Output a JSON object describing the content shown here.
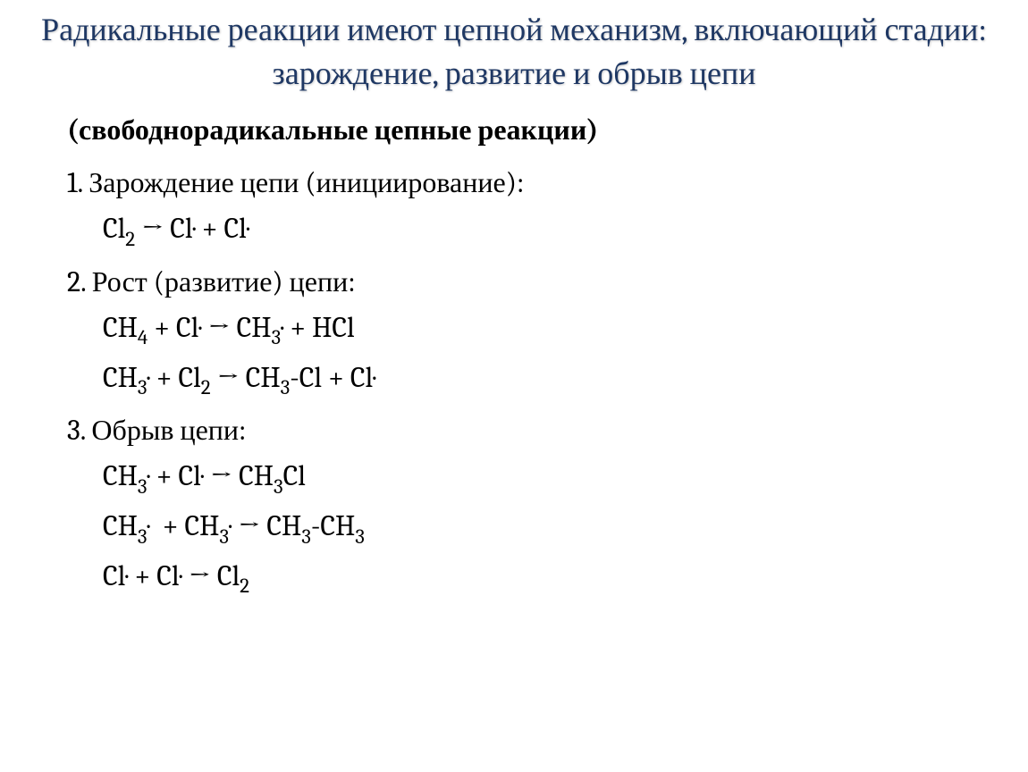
{
  "title": "Радикальные реакции имеют цепной механизм, включающий стадии: зарождение, развитие и обрыв цепи",
  "subtitle": "(свободнорадикальные цепные реакции)",
  "sections": [
    {
      "heading": "1. Зарождение цепи (инициирование):",
      "equations": [
        "Cl<sub>2</sub> → Cl<span class=\"radical\"></span> + Cl<span class=\"radical\"></span>"
      ]
    },
    {
      "heading": "2. Рост (развитие) цепи:",
      "equations": [
        "CH<sub>4</sub> + Cl<span class=\"radical\"></span> → CH<sub>3</sub><span class=\"radical\"></span> + HCl",
        "CH<sub>3</sub><span class=\"radical\"></span> + Cl<sub>2</sub> → CH<sub>3</sub>-Cl + Cl<span class=\"radical\"></span>"
      ]
    },
    {
      "heading": "3. Обрыв цепи:",
      "equations": [
        "CH<sub>3</sub><span class=\"radical\"></span> + Cl<span class=\"radical\"></span> → CH<sub>3</sub>Cl",
        "CH<sub>3</sub><span class=\"radical\"></span>&nbsp; + CH<sub>3</sub><span class=\"radical\"></span> → CH<sub>3</sub>-CH<sub>3</sub>",
        "Cl<span class=\"radical\"></span> + Cl<span class=\"radical\"></span> → Cl<sub>2</sub>"
      ]
    }
  ],
  "colors": {
    "title_color": "#1f3864",
    "text_color": "#000000",
    "background": "#ffffff"
  },
  "typography": {
    "title_fontsize": 36,
    "subtitle_fontsize": 32,
    "heading_fontsize": 32,
    "equation_fontsize": 32,
    "font_family": "Cambria"
  }
}
